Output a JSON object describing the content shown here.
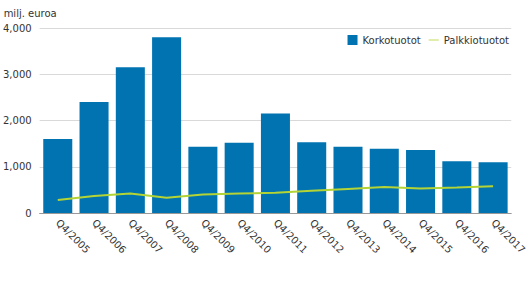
{
  "chart_data": {
    "type": "bar",
    "ylabel": "milj. euroa",
    "categories": [
      "Q4/2005",
      "Q4/2006",
      "Q4/2007",
      "Q4/2008",
      "Q4/2009",
      "Q4/2010",
      "Q4/2011",
      "Q4/2012",
      "Q4/2013",
      "Q4/2014",
      "Q4/2015",
      "Q4/2016",
      "Q4/2017"
    ],
    "series": [
      {
        "name": "Korkotuotot",
        "type": "bar",
        "color": "#0073b0",
        "values": [
          1600,
          2400,
          3150,
          3800,
          1430,
          1520,
          2150,
          1530,
          1430,
          1390,
          1360,
          1120,
          1100
        ]
      },
      {
        "name": "Palkkiotuotot",
        "type": "line",
        "color": "#b4d335",
        "values": [
          280,
          370,
          420,
          330,
          400,
          420,
          440,
          480,
          520,
          560,
          530,
          550,
          580
        ]
      }
    ],
    "ylim": [
      0,
      4000
    ],
    "yticks": [
      0,
      1000,
      2000,
      3000,
      4000
    ],
    "grid": true,
    "legend": "top-right"
  }
}
